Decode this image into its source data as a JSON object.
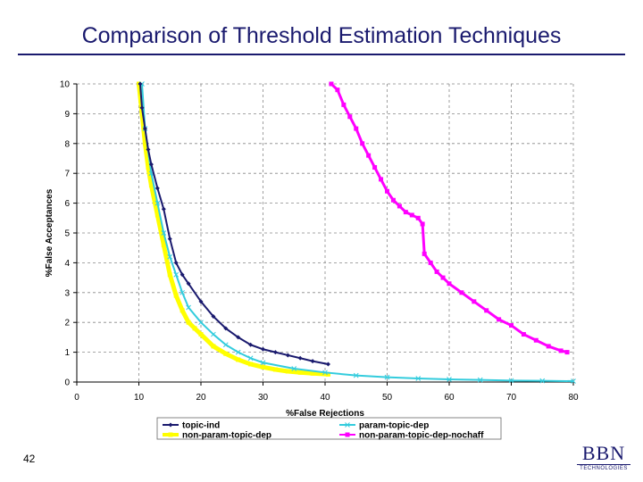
{
  "slide": {
    "title": "Comparison of Threshold Estimation Techniques",
    "page_number": "42",
    "logo_main": "BBN",
    "logo_sub": "TECHNOLOGIES"
  },
  "chart_data": {
    "type": "line",
    "title": "",
    "xlabel": "%False Rejections",
    "ylabel": "%False Acceptances",
    "xlim": [
      0,
      80
    ],
    "ylim": [
      0,
      10
    ],
    "xticks": [
      0,
      10,
      20,
      30,
      40,
      50,
      60,
      70,
      80
    ],
    "yticks": [
      0,
      1,
      2,
      3,
      4,
      5,
      6,
      7,
      8,
      9,
      10
    ],
    "grid": "vertical dashed at x = 10, 20, 30, 40, 50, 60, 70, 80; horizontal dashed at every y tick",
    "legend_position": "bottom",
    "series": [
      {
        "name": "topic-ind",
        "color": "#1a1a6e",
        "marker": "diamond",
        "x": [
          10.2,
          10.5,
          11,
          11.5,
          12,
          13,
          14,
          15,
          16,
          17,
          18,
          20,
          22,
          24,
          26,
          28,
          30,
          32,
          34,
          36,
          38,
          40.5
        ],
        "y": [
          10,
          9.2,
          8.5,
          7.8,
          7.3,
          6.5,
          5.8,
          4.8,
          4.0,
          3.6,
          3.3,
          2.7,
          2.2,
          1.8,
          1.5,
          1.25,
          1.1,
          1.0,
          0.9,
          0.8,
          0.7,
          0.6
        ]
      },
      {
        "name": "param-topic-dep",
        "color": "#33ccdd",
        "marker": "x",
        "x": [
          10.5,
          11,
          12,
          13,
          14,
          15,
          16,
          17,
          18,
          20,
          22,
          24,
          26,
          28,
          30,
          35,
          40,
          45,
          50,
          55,
          60,
          65,
          70,
          75,
          80
        ],
        "y": [
          10,
          8.5,
          7.0,
          6.0,
          5.0,
          4.2,
          3.6,
          3.0,
          2.5,
          2.0,
          1.6,
          1.25,
          1.0,
          0.8,
          0.65,
          0.45,
          0.32,
          0.22,
          0.16,
          0.12,
          0.09,
          0.07,
          0.05,
          0.04,
          0.03
        ]
      },
      {
        "name": "non-param-topic-dep",
        "color": "#ffff00",
        "marker": "square",
        "x": [
          10,
          10.5,
          11,
          11.5,
          12,
          13,
          14,
          15,
          16,
          17,
          18,
          19,
          20,
          22,
          24,
          26,
          28,
          30,
          32,
          34,
          36,
          38,
          40.5
        ],
        "y": [
          10,
          9.0,
          8.0,
          7.2,
          6.6,
          5.6,
          4.6,
          3.6,
          2.9,
          2.4,
          2.0,
          1.8,
          1.6,
          1.2,
          0.95,
          0.75,
          0.6,
          0.5,
          0.42,
          0.36,
          0.32,
          0.29,
          0.26
        ]
      },
      {
        "name": "non-param-topic-dep-nochaff",
        "color": "#ff00ff",
        "marker": "square",
        "x": [
          41,
          42,
          43,
          44,
          45,
          46,
          47,
          48,
          49,
          50,
          51,
          52,
          53,
          54,
          55,
          55.7,
          56,
          57,
          58,
          59,
          60,
          62,
          64,
          66,
          68,
          70,
          72,
          74,
          76,
          78,
          79
        ],
        "y": [
          10,
          9.8,
          9.3,
          8.9,
          8.5,
          8.0,
          7.6,
          7.2,
          6.8,
          6.4,
          6.1,
          5.9,
          5.7,
          5.6,
          5.5,
          5.3,
          4.3,
          4.0,
          3.7,
          3.5,
          3.3,
          3.0,
          2.7,
          2.4,
          2.1,
          1.9,
          1.6,
          1.4,
          1.2,
          1.05,
          1.0
        ]
      }
    ]
  }
}
